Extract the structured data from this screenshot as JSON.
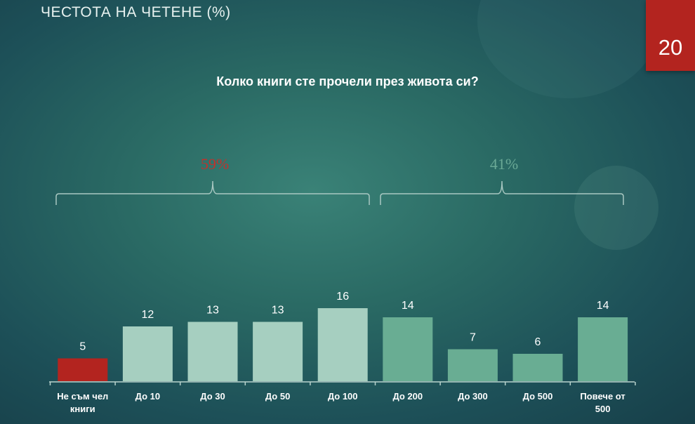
{
  "slide": {
    "title": "ЧЕСТОТА НА ЧЕТЕНЕ (%)",
    "page_number": "20",
    "question": "Колко книги сте прочели през живота си?"
  },
  "colors": {
    "highlight_red": "#b3241f",
    "light_bar": "#a6cfc0",
    "dark_bar": "#69ad93",
    "left_group_label": "#c0322c",
    "right_group_label": "#6aa996",
    "brace": "#a9c8c2"
  },
  "chart_data": {
    "type": "bar",
    "title": "",
    "xlabel": "",
    "ylabel": "",
    "categories": [
      "Не съм чел книги",
      "До 10",
      "До 30",
      "До 50",
      "До 100",
      "До 200",
      "До 300",
      "До 500",
      "Повече от 500"
    ],
    "category_lines": [
      [
        "Не съм чел",
        "книги"
      ],
      [
        "До 10"
      ],
      [
        "До 30"
      ],
      [
        "До 50"
      ],
      [
        "До 100"
      ],
      [
        "До 200"
      ],
      [
        "До 300"
      ],
      [
        "До 500"
      ],
      [
        "Повече от",
        "500"
      ]
    ],
    "values": [
      5,
      12,
      13,
      13,
      16,
      14,
      7,
      6,
      14
    ],
    "bar_color_groups": [
      "red",
      "light",
      "light",
      "light",
      "light",
      "dark",
      "dark",
      "dark",
      "dark"
    ],
    "ylim": [
      0,
      16
    ],
    "grid": false,
    "groups": [
      {
        "label": "59%",
        "from": 0,
        "to": 4,
        "color": "red"
      },
      {
        "label": "41%",
        "from": 5,
        "to": 8,
        "color": "green"
      }
    ]
  }
}
